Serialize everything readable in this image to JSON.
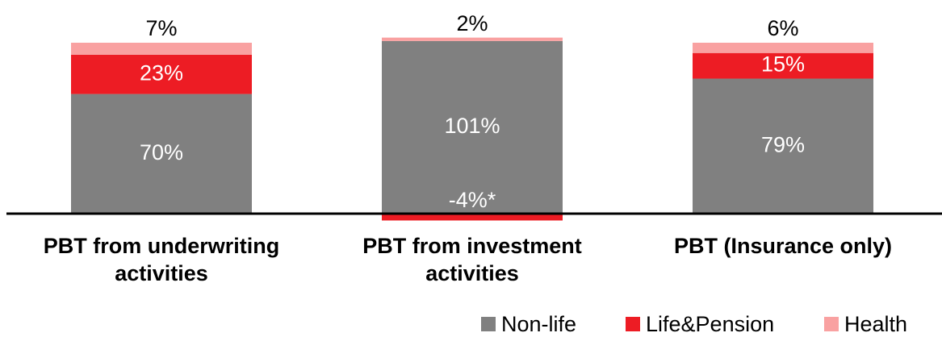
{
  "chart_data": {
    "type": "stacked-bar",
    "categories": [
      "PBT from underwriting activities",
      "PBT from investment activities",
      "PBT (Insurance only)"
    ],
    "series": [
      {
        "name": "Non-life",
        "color": "#808080",
        "values": [
          70,
          101,
          79
        ],
        "value_labels": [
          "70%",
          "101%",
          "79%"
        ]
      },
      {
        "name": "Life&Pension",
        "color": "#ed1c24",
        "values": [
          23,
          -4,
          15
        ],
        "value_labels": [
          "23%",
          "-4%*",
          "15%"
        ]
      },
      {
        "name": "Health",
        "color": "#f9a1a1",
        "values": [
          7,
          2,
          6
        ],
        "value_labels": [
          "7%",
          "2%",
          "6%"
        ]
      }
    ]
  }
}
